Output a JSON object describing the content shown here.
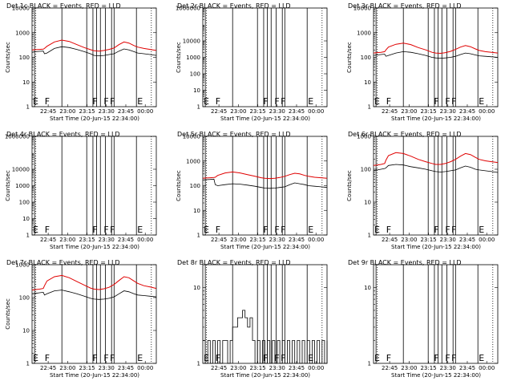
{
  "colors": {
    "events": "#000000",
    "lld": "#e00000",
    "background": "#ffffff"
  },
  "chart_data": [
    {
      "type": "line",
      "title": "Det 1c BLACK = Events, RED = LLD",
      "xlabel": "Start Time (20-Jun-15 22:34:00)",
      "ylabel": "Counts/sec",
      "x_ticklabels": [
        "22:45",
        "23:00",
        "23:15",
        "23:30",
        "23:45",
        "00:00"
      ],
      "y_ticklabels": [
        "1",
        "10",
        "100",
        "1000",
        "10000"
      ],
      "ylim": [
        1,
        10000
      ],
      "markers": [
        {
          "label": "E",
          "x": 0.0
        },
        {
          "label": "F",
          "x": 0.095
        },
        {
          "label": "F",
          "x": 0.48
        },
        {
          "label": "F",
          "x": 0.57
        },
        {
          "label": "F",
          "x": 0.62
        },
        {
          "label": "E",
          "x": 0.84
        }
      ],
      "series": [
        {
          "name": "Events",
          "x": [
            0,
            0.03,
            0.06,
            0.09,
            0.1,
            0.12,
            0.18,
            0.24,
            0.3,
            0.36,
            0.42,
            0.47,
            0.5,
            0.54,
            0.58,
            0.62,
            0.66,
            0.7,
            0.74,
            0.78,
            0.82,
            0.85,
            0.9,
            0.95,
            1.0
          ],
          "y": [
            160,
            170,
            175,
            180,
            140,
            150,
            230,
            270,
            250,
            210,
            170,
            140,
            120,
            115,
            120,
            130,
            140,
            180,
            220,
            200,
            170,
            150,
            140,
            130,
            120
          ]
        },
        {
          "name": "LLD",
          "x": [
            0,
            0.03,
            0.06,
            0.09,
            0.1,
            0.12,
            0.18,
            0.24,
            0.3,
            0.36,
            0.42,
            0.47,
            0.5,
            0.54,
            0.58,
            0.62,
            0.66,
            0.7,
            0.74,
            0.78,
            0.82,
            0.85,
            0.9,
            0.95,
            1.0
          ],
          "y": [
            200,
            205,
            210,
            215,
            230,
            280,
            420,
            500,
            440,
            330,
            250,
            205,
            185,
            180,
            190,
            210,
            240,
            330,
            420,
            380,
            300,
            260,
            230,
            210,
            190
          ]
        }
      ]
    },
    {
      "type": "line",
      "title": "Det 2r BLACK = Events, RED = LLD",
      "xlabel": "Start Time (20-Jun-15 22:34:00)",
      "ylabel": "Counts/sec",
      "x_ticklabels": [
        "22:45",
        "23:00",
        "23:15",
        "23:30",
        "23:45",
        "00:00"
      ],
      "y_ticklabels": [
        "1",
        "10",
        "100",
        "1000",
        "10000",
        "1000000"
      ],
      "ylim": [
        1,
        1000000
      ],
      "markers": [
        {
          "label": "E",
          "x": 0.0
        },
        {
          "label": "F",
          "x": 0.095
        },
        {
          "label": "F",
          "x": 0.48
        },
        {
          "label": "F",
          "x": 0.57
        },
        {
          "label": "F",
          "x": 0.62
        },
        {
          "label": "E",
          "x": 0.84
        }
      ],
      "series": []
    },
    {
      "type": "line",
      "title": "Det 3r BLACK = Events, RED = LLD",
      "xlabel": "Start Time (20-Jun-15 22:34:00)",
      "ylabel": "Counts/sec",
      "x_ticklabels": [
        "22:45",
        "23:00",
        "23:15",
        "23:30",
        "23:45",
        "00:00"
      ],
      "y_ticklabels": [
        "1",
        "10",
        "100",
        "1000",
        "10000"
      ],
      "ylim": [
        1,
        10000
      ],
      "markers": [
        {
          "label": "E",
          "x": 0.0
        },
        {
          "label": "F",
          "x": 0.095
        },
        {
          "label": "F",
          "x": 0.48
        },
        {
          "label": "F",
          "x": 0.57
        },
        {
          "label": "F",
          "x": 0.62
        },
        {
          "label": "E",
          "x": 0.84
        }
      ],
      "series": [
        {
          "name": "Events",
          "x": [
            0,
            0.03,
            0.06,
            0.09,
            0.1,
            0.12,
            0.18,
            0.24,
            0.3,
            0.36,
            0.42,
            0.47,
            0.5,
            0.54,
            0.58,
            0.62,
            0.66,
            0.7,
            0.74,
            0.78,
            0.82,
            0.85,
            0.9,
            0.95,
            1.0
          ],
          "y": [
            120,
            125,
            130,
            135,
            110,
            120,
            150,
            170,
            160,
            140,
            120,
            100,
            95,
            92,
            95,
            100,
            110,
            130,
            150,
            140,
            125,
            115,
            110,
            105,
            100
          ]
        },
        {
          "name": "LLD",
          "x": [
            0,
            0.03,
            0.06,
            0.09,
            0.1,
            0.12,
            0.18,
            0.24,
            0.3,
            0.36,
            0.42,
            0.47,
            0.5,
            0.54,
            0.58,
            0.62,
            0.66,
            0.7,
            0.74,
            0.78,
            0.82,
            0.85,
            0.9,
            0.95,
            1.0
          ],
          "y": [
            150,
            155,
            160,
            170,
            200,
            260,
            340,
            380,
            330,
            250,
            200,
            160,
            150,
            145,
            155,
            175,
            210,
            260,
            300,
            270,
            220,
            190,
            170,
            160,
            150
          ]
        }
      ]
    },
    {
      "type": "line",
      "title": "Det 4r BLACK = Events, RED = LLD",
      "xlabel": "Start Time (20-Jun-15 22:34:00)",
      "ylabel": "Counts/sec",
      "x_ticklabels": [
        "22:45",
        "23:00",
        "23:15",
        "23:30",
        "23:45",
        "00:00"
      ],
      "y_ticklabels": [
        "1",
        "10",
        "100",
        "1000",
        "10000",
        "1000000"
      ],
      "ylim": [
        1,
        1000000
      ],
      "markers": [
        {
          "label": "E",
          "x": 0.0
        },
        {
          "label": "F",
          "x": 0.095
        },
        {
          "label": "F",
          "x": 0.48
        },
        {
          "label": "F",
          "x": 0.57
        },
        {
          "label": "F",
          "x": 0.62
        },
        {
          "label": "E",
          "x": 0.84
        }
      ],
      "series": []
    },
    {
      "type": "line",
      "title": "Det 5r BLACK = Events, RED = LLD",
      "xlabel": "Start Time (20-Jun-15 22:34:00)",
      "ylabel": "Counts/sec",
      "x_ticklabels": [
        "22:45",
        "23:00",
        "23:15",
        "23:30",
        "23:45",
        "00:00"
      ],
      "y_ticklabels": [
        "1",
        "10",
        "100",
        "1000",
        "10000"
      ],
      "ylim": [
        1,
        10000
      ],
      "markers": [
        {
          "label": "E",
          "x": 0.0
        },
        {
          "label": "F",
          "x": 0.095
        },
        {
          "label": "F",
          "x": 0.48
        },
        {
          "label": "F",
          "x": 0.57
        },
        {
          "label": "F",
          "x": 0.62
        },
        {
          "label": "E",
          "x": 0.84
        }
      ],
      "series": [
        {
          "name": "Events",
          "x": [
            0,
            0.03,
            0.06,
            0.09,
            0.1,
            0.12,
            0.18,
            0.24,
            0.3,
            0.36,
            0.42,
            0.47,
            0.5,
            0.54,
            0.58,
            0.62,
            0.66,
            0.7,
            0.74,
            0.78,
            0.82,
            0.85,
            0.9,
            0.95,
            1.0
          ],
          "y": [
            170,
            175,
            180,
            185,
            110,
            100,
            110,
            120,
            115,
            105,
            95,
            85,
            80,
            78,
            80,
            85,
            90,
            110,
            130,
            120,
            110,
            100,
            95,
            90,
            85
          ]
        },
        {
          "name": "LLD",
          "x": [
            0,
            0.03,
            0.06,
            0.09,
            0.1,
            0.12,
            0.18,
            0.24,
            0.3,
            0.36,
            0.42,
            0.47,
            0.5,
            0.54,
            0.58,
            0.62,
            0.66,
            0.7,
            0.74,
            0.78,
            0.82,
            0.85,
            0.9,
            0.95,
            1.0
          ],
          "y": [
            200,
            205,
            210,
            215,
            220,
            260,
            330,
            360,
            330,
            280,
            240,
            210,
            200,
            195,
            200,
            215,
            240,
            280,
            320,
            300,
            260,
            240,
            220,
            210,
            200
          ]
        }
      ]
    },
    {
      "type": "line",
      "title": "Det 6r BLACK = Events, RED = LLD",
      "xlabel": "Start Time (20-Jun-15 22:34:00)",
      "ylabel": "Counts/sec",
      "x_ticklabels": [
        "22:45",
        "23:00",
        "23:15",
        "23:30",
        "23:45",
        "00:00"
      ],
      "y_ticklabels": [
        "1",
        "10",
        "100",
        "1000"
      ],
      "ylim": [
        1,
        1000
      ],
      "markers": [
        {
          "label": "E",
          "x": 0.0
        },
        {
          "label": "F",
          "x": 0.095
        },
        {
          "label": "F",
          "x": 0.48
        },
        {
          "label": "F",
          "x": 0.57
        },
        {
          "label": "F",
          "x": 0.62
        },
        {
          "label": "E",
          "x": 0.84
        }
      ],
      "series": [
        {
          "name": "Events",
          "x": [
            0,
            0.03,
            0.06,
            0.09,
            0.1,
            0.12,
            0.18,
            0.24,
            0.3,
            0.36,
            0.42,
            0.47,
            0.5,
            0.54,
            0.58,
            0.62,
            0.66,
            0.7,
            0.74,
            0.78,
            0.82,
            0.85,
            0.9,
            0.95,
            1.0
          ],
          "y": [
            90,
            95,
            100,
            105,
            110,
            130,
            140,
            135,
            120,
            110,
            100,
            90,
            85,
            82,
            85,
            90,
            95,
            110,
            125,
            115,
            100,
            95,
            90,
            85,
            80
          ]
        },
        {
          "name": "LLD",
          "x": [
            0,
            0.03,
            0.06,
            0.09,
            0.1,
            0.12,
            0.18,
            0.24,
            0.3,
            0.36,
            0.42,
            0.47,
            0.5,
            0.54,
            0.58,
            0.62,
            0.66,
            0.7,
            0.74,
            0.78,
            0.82,
            0.85,
            0.9,
            0.95,
            1.0
          ],
          "y": [
            130,
            135,
            140,
            150,
            190,
            260,
            320,
            300,
            250,
            200,
            170,
            150,
            140,
            140,
            150,
            170,
            200,
            250,
            300,
            280,
            230,
            200,
            180,
            170,
            160
          ]
        }
      ]
    },
    {
      "type": "line",
      "title": "Det 7r BLACK = Events, RED = LLD",
      "xlabel": "Start Time (20-Jun-15 22:34:00)",
      "ylabel": "Counts/sec",
      "x_ticklabels": [
        "22:45",
        "23:00",
        "23:15",
        "23:30",
        "23:45",
        "00:00"
      ],
      "y_ticklabels": [
        "1",
        "10",
        "100",
        "1000"
      ],
      "ylim": [
        1,
        1000
      ],
      "markers": [
        {
          "label": "E",
          "x": 0.0
        },
        {
          "label": "F",
          "x": 0.095
        },
        {
          "label": "F",
          "x": 0.48
        },
        {
          "label": "F",
          "x": 0.57
        },
        {
          "label": "F",
          "x": 0.62
        },
        {
          "label": "E",
          "x": 0.84
        }
      ],
      "series": [
        {
          "name": "Events",
          "x": [
            0,
            0.03,
            0.06,
            0.09,
            0.1,
            0.12,
            0.18,
            0.24,
            0.3,
            0.36,
            0.42,
            0.47,
            0.5,
            0.54,
            0.58,
            0.62,
            0.66,
            0.7,
            0.74,
            0.78,
            0.82,
            0.85,
            0.9,
            0.95,
            1.0
          ],
          "y": [
            130,
            135,
            140,
            145,
            120,
            130,
            160,
            170,
            150,
            130,
            110,
            95,
            90,
            88,
            90,
            95,
            105,
            130,
            160,
            150,
            130,
            120,
            115,
            110,
            105
          ]
        },
        {
          "name": "LLD",
          "x": [
            0,
            0.03,
            0.06,
            0.09,
            0.1,
            0.12,
            0.18,
            0.24,
            0.3,
            0.36,
            0.42,
            0.47,
            0.5,
            0.54,
            0.58,
            0.62,
            0.66,
            0.7,
            0.74,
            0.78,
            0.82,
            0.85,
            0.9,
            0.95,
            1.0
          ],
          "y": [
            170,
            175,
            180,
            190,
            230,
            320,
            430,
            470,
            400,
            310,
            240,
            195,
            180,
            175,
            185,
            205,
            250,
            330,
            430,
            400,
            320,
            270,
            230,
            210,
            190
          ]
        }
      ]
    },
    {
      "type": "line",
      "title": "Det 8r BLACK = Events, RED = LLD",
      "xlabel": "Start Time (20-Jun-15 22:34:00)",
      "ylabel": "",
      "x_ticklabels": [
        "22:45",
        "23:00",
        "23:15",
        "23:30",
        "23:45",
        "00:00"
      ],
      "y_ticklabels": [
        "1",
        "10"
      ],
      "ylim": [
        1,
        20
      ],
      "markers": [
        {
          "label": "E",
          "x": 0.0
        },
        {
          "label": "F",
          "x": 0.095
        },
        {
          "label": "F",
          "x": 0.48
        },
        {
          "label": "F",
          "x": 0.57
        },
        {
          "label": "F",
          "x": 0.62
        },
        {
          "label": "E",
          "x": 0.84
        }
      ],
      "series": [
        {
          "name": "Events",
          "x": [
            0,
            0.02,
            0.04,
            0.06,
            0.08,
            0.1,
            0.12,
            0.14,
            0.16,
            0.18,
            0.2,
            0.22,
            0.24,
            0.26,
            0.28,
            0.3,
            0.32,
            0.34,
            0.36,
            0.38,
            0.4,
            0.42,
            0.44,
            0.46,
            0.48,
            0.5,
            0.52,
            0.54,
            0.56,
            0.58,
            0.6,
            0.62,
            0.64,
            0.66,
            0.68,
            0.7,
            0.72,
            0.74,
            0.76,
            0.78,
            0.8,
            0.82,
            0.84,
            0.86,
            0.88,
            0.9,
            0.92,
            0.94,
            0.96,
            0.98,
            1.0
          ],
          "y": [
            2,
            1,
            2,
            1,
            2,
            1,
            2,
            1,
            2,
            2,
            1,
            2,
            3,
            3,
            4,
            4,
            5,
            4,
            3,
            4,
            2,
            1,
            2,
            1,
            2,
            1,
            2,
            1,
            2,
            1,
            2,
            1,
            2,
            1,
            2,
            1,
            2,
            1,
            2,
            1,
            2,
            1,
            2,
            1,
            2,
            1,
            2,
            1,
            2,
            1,
            2
          ]
        }
      ]
    },
    {
      "type": "line",
      "title": "Det 9r BLACK = Events, RED = LLD",
      "xlabel": "Start Time (20-Jun-15 22:34:00)",
      "ylabel": "",
      "x_ticklabels": [
        "22:45",
        "23:00",
        "23:15",
        "23:30",
        "23:45",
        "00:00"
      ],
      "y_ticklabels": [
        "1",
        "10"
      ],
      "ylim": [
        1,
        20
      ],
      "markers": [
        {
          "label": "E",
          "x": 0.0
        },
        {
          "label": "F",
          "x": 0.095
        },
        {
          "label": "F",
          "x": 0.48
        },
        {
          "label": "F",
          "x": 0.57
        },
        {
          "label": "F",
          "x": 0.62
        },
        {
          "label": "E",
          "x": 0.84
        }
      ],
      "series": []
    }
  ]
}
